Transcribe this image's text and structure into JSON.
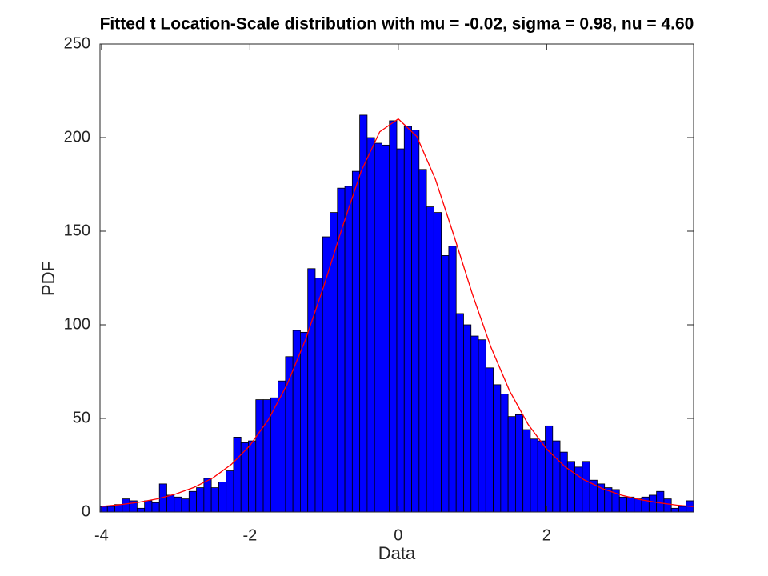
{
  "chart_data": {
    "type": "histogram",
    "title": "Fitted t Location-Scale distribution with mu = -0.02, sigma = 0.98, nu = 4.60",
    "xlabel": "Data",
    "ylabel": "PDF",
    "bins": [
      -4.02,
      -3.92,
      -3.82,
      -3.72,
      -3.62,
      -3.52,
      -3.42,
      -3.32,
      -3.22,
      -3.12,
      -3.02,
      -2.92,
      -2.82,
      -2.72,
      -2.62,
      -2.52,
      -2.42,
      -2.32,
      -2.22,
      -2.12,
      -2.02,
      -1.92,
      -1.82,
      -1.72,
      -1.62,
      -1.52,
      -1.42,
      -1.32,
      -1.22,
      -1.12,
      -1.02,
      -0.92,
      -0.82,
      -0.72,
      -0.62,
      -0.52,
      -0.42,
      -0.32,
      -0.22,
      -0.12,
      -0.02,
      0.08,
      0.18,
      0.28,
      0.38,
      0.48,
      0.58,
      0.68,
      0.78,
      0.88,
      0.98,
      1.08,
      1.18,
      1.28,
      1.38,
      1.48,
      1.58,
      1.68,
      1.78,
      1.88,
      1.98,
      2.08,
      2.18,
      2.28,
      2.38,
      2.48,
      2.58,
      2.68,
      2.78,
      2.88,
      2.98,
      3.08,
      3.18,
      3.28,
      3.38,
      3.48,
      3.58,
      3.68,
      3.78,
      3.88,
      3.98
    ],
    "counts": [
      3,
      3,
      4,
      7,
      6,
      2,
      6,
      5,
      15,
      9,
      8,
      7,
      11,
      13,
      18,
      13,
      16,
      22,
      40,
      37,
      38,
      60,
      60,
      61,
      70,
      83,
      97,
      96,
      130,
      125,
      147,
      160,
      173,
      174,
      182,
      212,
      200,
      197,
      196,
      209,
      194,
      206,
      204,
      183,
      163,
      160,
      137,
      142,
      106,
      100,
      94,
      92,
      77,
      68,
      63,
      51,
      52,
      44,
      39,
      38,
      46,
      38,
      32,
      27,
      24,
      27,
      17,
      15,
      13,
      12,
      8,
      8,
      7,
      8,
      9,
      11,
      7,
      2,
      3,
      6
    ],
    "color": "#0000ff",
    "fit": {
      "x": [
        -4,
        -3.75,
        -3.5,
        -3.25,
        -3,
        -2.75,
        -2.5,
        -2.25,
        -2,
        -1.75,
        -1.5,
        -1.25,
        -1,
        -0.75,
        -0.5,
        -0.25,
        0,
        0.25,
        0.5,
        0.75,
        1,
        1.25,
        1.5,
        1.75,
        2,
        2.25,
        2.5,
        2.75,
        3,
        3.25,
        3.5,
        3.75,
        3.98
      ],
      "values": [
        2.95,
        3.9,
        5.2,
        7.0,
        9.6,
        13.2,
        18.2,
        25.4,
        35.5,
        49.4,
        68.0,
        92.1,
        121.1,
        152.6,
        182.1,
        203.1,
        210.0,
        200.6,
        177.8,
        147.6,
        116.2,
        87.9,
        64.7,
        46.8,
        33.6,
        24.1,
        17.3,
        12.5,
        9.1,
        6.7,
        5.0,
        3.7,
        2.9
      ],
      "color": "#ff0000"
    },
    "xlim": [
      -4.02,
      3.98
    ],
    "ylim": [
      0,
      250
    ],
    "xticks": [
      -4,
      -2,
      0,
      2
    ],
    "yticks": [
      0,
      50,
      100,
      150,
      200,
      250
    ]
  }
}
